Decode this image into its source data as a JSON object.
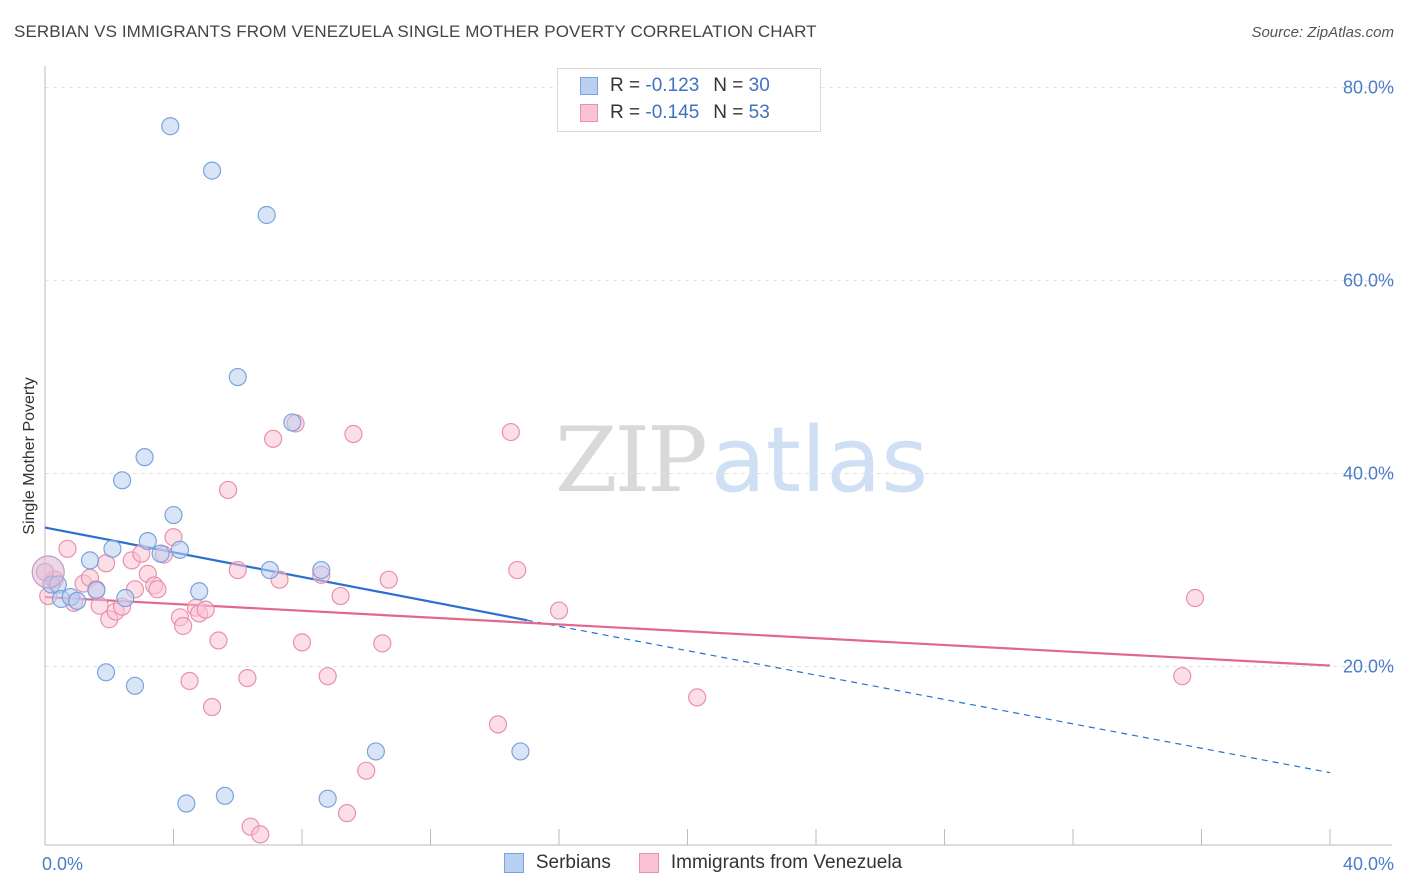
{
  "header": {
    "title": "SERBIAN VS IMMIGRANTS FROM VENEZUELA SINGLE MOTHER POVERTY CORRELATION CHART",
    "source": "Source: ZipAtlas.com"
  },
  "watermark": {
    "zip": "ZIP",
    "atlas": "atlas"
  },
  "legend": {
    "serbians": {
      "r_label": "R =",
      "r_value": "-0.123",
      "n_label": "N =",
      "n_value": "30"
    },
    "venezuela": {
      "r_label": "R =",
      "r_value": "-0.145",
      "n_label": "N =",
      "n_value": "53"
    }
  },
  "bottom_legend": {
    "serbians": "Serbians",
    "venezuela": "Immigrants from Venezuela"
  },
  "colors": {
    "serbian_fill": "#b9d0f1",
    "serbian_stroke": "#7aa3dc",
    "serbian_line": "#2a6fd1",
    "venezuela_fill": "#f9c3d3",
    "venezuela_stroke": "#ea90ad",
    "venezuela_line": "#e0688f",
    "tick": "#4a7cc9",
    "grid": "#e2e2e2"
  },
  "chart_data": {
    "type": "scatter",
    "title": "SERBIAN VS IMMIGRANTS FROM VENEZUELA SINGLE MOTHER POVERTY CORRELATION CHART",
    "xlabel": "",
    "ylabel": "Single Mother Poverty",
    "xlim": [
      0,
      40
    ],
    "ylim": [
      1.5,
      81
    ],
    "x_tick_labels": [
      "0.0%",
      "40.0%"
    ],
    "y_ticks": [
      20,
      40,
      60,
      80
    ],
    "y_tick_labels": [
      "20.0%",
      "40.0%",
      "60.0%",
      "80.0%"
    ],
    "grid": true,
    "series": [
      {
        "name": "Serbians",
        "r": -0.123,
        "n": 30,
        "points": [
          [
            0.2,
            28.5
          ],
          [
            0.4,
            28.5
          ],
          [
            0.5,
            27.0
          ],
          [
            0.8,
            27.2
          ],
          [
            1.0,
            26.8
          ],
          [
            1.4,
            31.0
          ],
          [
            1.6,
            27.9
          ],
          [
            1.9,
            19.4
          ],
          [
            2.1,
            32.2
          ],
          [
            2.4,
            39.3
          ],
          [
            2.5,
            27.1
          ],
          [
            2.8,
            18.0
          ],
          [
            3.1,
            41.7
          ],
          [
            3.2,
            33.0
          ],
          [
            3.6,
            31.7
          ],
          [
            3.9,
            76.0
          ],
          [
            4.0,
            35.7
          ],
          [
            4.2,
            32.1
          ],
          [
            4.8,
            27.8
          ],
          [
            4.4,
            5.8
          ],
          [
            5.2,
            71.4
          ],
          [
            5.6,
            6.6
          ],
          [
            6.0,
            50.0
          ],
          [
            6.9,
            66.8
          ],
          [
            7.0,
            30.0
          ],
          [
            7.7,
            45.3
          ],
          [
            8.6,
            30.0
          ],
          [
            8.8,
            6.3
          ],
          [
            10.3,
            11.2
          ],
          [
            14.8,
            11.2
          ]
        ],
        "trend": {
          "x0": 0,
          "y0": 34.4,
          "x1": 15.0,
          "y1": 24.8,
          "dash_to_x": 40,
          "dash_to_y": 9.0
        }
      },
      {
        "name": "Immigrants from Venezuela",
        "r": -0.145,
        "n": 53,
        "points": [
          [
            0.1,
            27.3
          ],
          [
            0.3,
            29.0
          ],
          [
            0.7,
            32.2
          ],
          [
            0.9,
            26.6
          ],
          [
            1.2,
            28.6
          ],
          [
            1.4,
            29.2
          ],
          [
            1.6,
            28.0
          ],
          [
            1.7,
            26.3
          ],
          [
            1.9,
            30.7
          ],
          [
            2.0,
            24.9
          ],
          [
            2.2,
            25.7
          ],
          [
            2.4,
            26.2
          ],
          [
            2.7,
            31.0
          ],
          [
            2.8,
            28.0
          ],
          [
            3.0,
            31.7
          ],
          [
            3.2,
            29.6
          ],
          [
            3.4,
            28.4
          ],
          [
            3.5,
            28.0
          ],
          [
            3.7,
            31.6
          ],
          [
            4.0,
            33.4
          ],
          [
            4.2,
            25.1
          ],
          [
            4.3,
            24.2
          ],
          [
            4.5,
            18.5
          ],
          [
            4.7,
            26.1
          ],
          [
            4.8,
            25.5
          ],
          [
            5.0,
            25.9
          ],
          [
            5.2,
            15.8
          ],
          [
            5.4,
            22.7
          ],
          [
            5.7,
            38.3
          ],
          [
            6.0,
            30.0
          ],
          [
            6.3,
            18.8
          ],
          [
            6.4,
            3.4
          ],
          [
            6.7,
            2.6
          ],
          [
            7.1,
            43.6
          ],
          [
            7.3,
            29.0
          ],
          [
            7.8,
            45.2
          ],
          [
            8.0,
            22.5
          ],
          [
            8.6,
            29.5
          ],
          [
            8.8,
            19.0
          ],
          [
            9.2,
            27.3
          ],
          [
            9.4,
            4.8
          ],
          [
            9.6,
            44.1
          ],
          [
            10.0,
            9.2
          ],
          [
            10.5,
            22.4
          ],
          [
            10.7,
            29.0
          ],
          [
            14.1,
            14.0
          ],
          [
            14.5,
            44.3
          ],
          [
            14.7,
            30.0
          ],
          [
            16.0,
            25.8
          ],
          [
            20.3,
            16.8
          ],
          [
            35.4,
            19.0
          ],
          [
            35.8,
            27.1
          ],
          [
            0.0,
            29.8
          ]
        ],
        "trend": {
          "x0": 0,
          "y0": 27.2,
          "x1": 40,
          "y1": 20.1
        }
      }
    ]
  }
}
